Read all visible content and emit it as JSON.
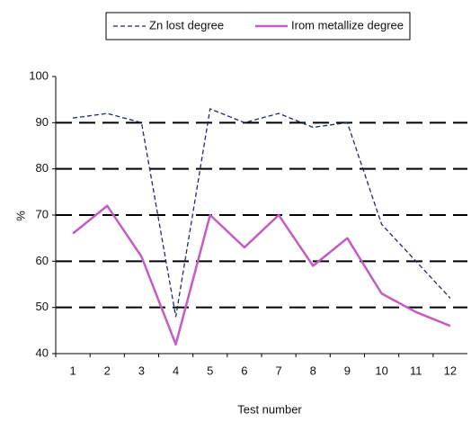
{
  "chart_data": {
    "type": "line",
    "x_label": "Test number",
    "y_label": "%",
    "categories": [
      "1",
      "2",
      "3",
      "4",
      "5",
      "6",
      "7",
      "8",
      "9",
      "10",
      "11",
      "12"
    ],
    "series": [
      {
        "name": "Zn lost degree",
        "color": "#1f2a6b",
        "style": "dashed",
        "values": [
          91,
          92,
          90,
          48,
          93,
          90,
          92,
          89,
          90,
          68,
          60,
          52
        ]
      },
      {
        "name": "Irom metallize degree",
        "color": "#c45cc4",
        "style": "solid",
        "values": [
          66,
          72,
          61,
          42,
          70,
          63,
          70,
          59,
          65,
          53,
          49,
          46
        ]
      }
    ],
    "ylim": [
      40,
      100
    ],
    "yticks": [
      40,
      50,
      60,
      70,
      80,
      90,
      100
    ],
    "grid": true
  }
}
